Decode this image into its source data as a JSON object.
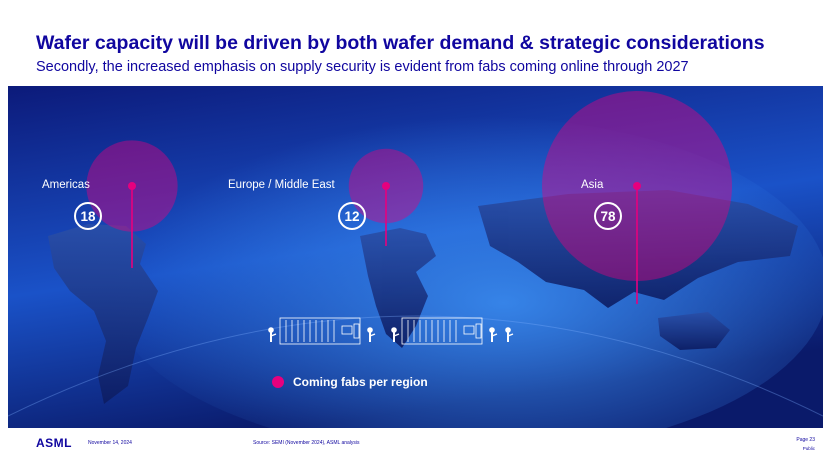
{
  "header": {
    "title": "Wafer capacity will be driven by both wafer demand & strategic considerations",
    "subtitle": "Secondly, the increased emphasis on supply security is evident from fabs coming online through 2027"
  },
  "chart_data": {
    "type": "bubble-map",
    "regions": [
      {
        "name": "Americas",
        "value": 18
      },
      {
        "name": "Europe / Middle East",
        "value": 12
      },
      {
        "name": "Asia",
        "value": 78
      }
    ],
    "legend": [
      {
        "label": "Coming fabs per region",
        "color": "#e6007e"
      }
    ],
    "legend_placement": "bottom-center"
  },
  "colors": {
    "brand": "#10069f",
    "bubble": "#e6007e",
    "background_dark": "#0a0f55",
    "background_light": "#1e6fe0"
  },
  "footer": {
    "logo": "ASML",
    "date": "November 14, 2024",
    "source": "Source: SEMI (November 2024), ASML analysis",
    "page": "Page 23",
    "classification": "Public"
  }
}
